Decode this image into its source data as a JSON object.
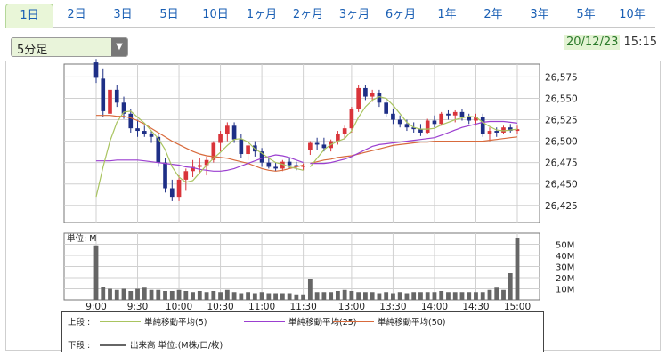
{
  "tabs": [
    {
      "label": "1日",
      "active": true
    },
    {
      "label": "2日",
      "active": false
    },
    {
      "label": "3日",
      "active": false
    },
    {
      "label": "5日",
      "active": false
    },
    {
      "label": "10日",
      "active": false
    },
    {
      "label": "1ヶ月",
      "active": false
    },
    {
      "label": "2ヶ月",
      "active": false
    },
    {
      "label": "3ヶ月",
      "active": false
    },
    {
      "label": "6ヶ月",
      "active": false
    },
    {
      "label": "1年",
      "active": false
    },
    {
      "label": "2年",
      "active": false
    },
    {
      "label": "3年",
      "active": false
    },
    {
      "label": "5年",
      "active": false
    },
    {
      "label": "10年",
      "active": false
    }
  ],
  "interval_select": {
    "value": "5分足"
  },
  "datetime": {
    "date": "20/12/23",
    "time": "15:15"
  },
  "colors": {
    "up": "#d9343a",
    "down": "#1e2f86",
    "ma5": "#a9c460",
    "ma25": "#9b3fd0",
    "ma50": "#d86a3c",
    "volume": "#666666",
    "grid": "#d0d0d0"
  },
  "legend": {
    "upper_label": "上段 :",
    "lower_label": "下段 :",
    "ma5_label": "単純移動平均(5)",
    "ma25_label": "単純移動平均(25)",
    "ma50_label": "単純移動平均(50)",
    "volume_label": "出来高 単位:(M株/口/枚)"
  },
  "chart_data": [
    {
      "type": "candlestick",
      "x_ticks": [
        "9:00",
        "9:30",
        "10:00",
        "10:30",
        "11:00",
        "11:30",
        "13:00",
        "13:30",
        "14:00",
        "14:30",
        "15:00"
      ],
      "y_ticks": [
        26425,
        26450,
        26475,
        26500,
        26525,
        26550,
        26575
      ],
      "ylim": [
        26405,
        26590
      ],
      "session1_times": [
        "9:00",
        "9:05",
        "9:10",
        "9:15",
        "9:20",
        "9:25",
        "9:30",
        "9:35",
        "9:40",
        "9:45",
        "9:50",
        "9:55",
        "10:00",
        "10:05",
        "10:10",
        "10:15",
        "10:20",
        "10:25",
        "10:30",
        "10:35",
        "10:40",
        "10:45",
        "10:50",
        "10:55",
        "11:00",
        "11:05",
        "11:10",
        "11:15",
        "11:20",
        "11:25",
        "11:30"
      ],
      "session1_candles": [
        [
          26592,
          26596,
          26568,
          26574
        ],
        [
          26573,
          26585,
          26528,
          26535
        ],
        [
          26532,
          26566,
          26528,
          26560
        ],
        [
          26560,
          26566,
          26540,
          26545
        ],
        [
          26545,
          26552,
          26526,
          26532
        ],
        [
          26532,
          26538,
          26510,
          26515
        ],
        [
          26515,
          26525,
          26505,
          26512
        ],
        [
          26512,
          26518,
          26505,
          26508
        ],
        [
          26508,
          26512,
          26498,
          26505
        ],
        [
          26505,
          26510,
          26470,
          26475
        ],
        [
          26475,
          26480,
          26440,
          26445
        ],
        [
          26445,
          26455,
          26430,
          26435
        ],
        [
          26435,
          26460,
          26430,
          26455
        ],
        [
          26455,
          26468,
          26442,
          26465
        ],
        [
          26465,
          26478,
          26458,
          26470
        ],
        [
          26470,
          26480,
          26462,
          26472
        ],
        [
          26472,
          26482,
          26460,
          26478
        ],
        [
          26478,
          26500,
          26475,
          26498
        ],
        [
          26498,
          26512,
          26488,
          26508
        ],
        [
          26508,
          26522,
          26500,
          26518
        ],
        [
          26518,
          26522,
          26498,
          26502
        ],
        [
          26502,
          26508,
          26480,
          26485
        ],
        [
          26485,
          26500,
          26478,
          26495
        ],
        [
          26495,
          26500,
          26482,
          26488
        ],
        [
          26488,
          26492,
          26470,
          26475
        ],
        [
          26475,
          26480,
          26468,
          26470
        ],
        [
          26470,
          26475,
          26465,
          26468
        ],
        [
          26468,
          26478,
          26465,
          26476
        ],
        [
          26476,
          26480,
          26468,
          26472
        ],
        [
          26472,
          26476,
          26466,
          26470
        ],
        [
          26470,
          26474,
          26466,
          26471
        ]
      ],
      "session2_times": [
        "12:30",
        "12:35",
        "12:40",
        "12:45",
        "12:50",
        "12:55",
        "13:00",
        "13:05",
        "13:10",
        "13:15",
        "13:20",
        "13:25",
        "13:30",
        "13:35",
        "13:40",
        "13:45",
        "13:50",
        "13:55",
        "14:00",
        "14:05",
        "14:10",
        "14:15",
        "14:20",
        "14:25",
        "14:30",
        "14:35",
        "14:40",
        "14:45",
        "14:50",
        "14:55",
        "15:00"
      ],
      "session2_candles": [
        [
          26490,
          26500,
          26484,
          26498
        ],
        [
          26498,
          26504,
          26490,
          26496
        ],
        [
          26496,
          26504,
          26488,
          26492
        ],
        [
          26492,
          26502,
          26488,
          26500
        ],
        [
          26500,
          26512,
          26496,
          26508
        ],
        [
          26508,
          26518,
          26502,
          26515
        ],
        [
          26515,
          26540,
          26510,
          26538
        ],
        [
          26538,
          26566,
          26534,
          26562
        ],
        [
          26562,
          26566,
          26548,
          26552
        ],
        [
          26552,
          26560,
          26546,
          26556
        ],
        [
          26556,
          26560,
          26540,
          26545
        ],
        [
          26545,
          26550,
          26528,
          26532
        ],
        [
          26532,
          26538,
          26520,
          26525
        ],
        [
          26525,
          26530,
          26516,
          26520
        ],
        [
          26520,
          26525,
          26512,
          26516
        ],
        [
          26516,
          26522,
          26510,
          26514
        ],
        [
          26514,
          26520,
          26506,
          26510
        ],
        [
          26510,
          26526,
          26508,
          26524
        ],
        [
          26524,
          26530,
          26516,
          26520
        ],
        [
          26520,
          26534,
          26518,
          26532
        ],
        [
          26532,
          26536,
          26525,
          26530
        ],
        [
          26530,
          26536,
          26522,
          26534
        ],
        [
          26534,
          26538,
          26524,
          26528
        ],
        [
          26528,
          26532,
          26520,
          26524
        ],
        [
          26524,
          26532,
          26518,
          26528
        ],
        [
          26528,
          26532,
          26505,
          26508
        ],
        [
          26508,
          26516,
          26500,
          26512
        ],
        [
          26512,
          26516,
          26505,
          26510
        ],
        [
          26510,
          26518,
          26508,
          26516
        ],
        [
          26516,
          26520,
          26510,
          26512
        ],
        [
          26512,
          26518,
          26508,
          26514
        ]
      ],
      "ma5_session1": [
        26435,
        26470,
        26500,
        26522,
        26534,
        26535,
        26528,
        26521,
        26512,
        26503,
        26490,
        26470,
        26458,
        26452,
        26454,
        26463,
        26472,
        26480,
        26487,
        26495,
        26502,
        26503,
        26499,
        26491,
        26486,
        26480,
        26475,
        26473,
        26470,
        26468,
        26466
      ],
      "ma5_session2": [
        26470,
        26480,
        26490,
        26496,
        26500,
        26503,
        26512,
        26528,
        26540,
        26548,
        26552,
        26550,
        26542,
        26532,
        26522,
        26516,
        26514,
        26514,
        26515,
        26519,
        26522,
        26525,
        26527,
        26529,
        26528,
        26522,
        26517,
        26513,
        26512,
        26513,
        26514
      ],
      "ma25_session1": [
        26477,
        26477,
        26477,
        26478,
        26478,
        26478,
        26478,
        26477,
        26476,
        26475,
        26474,
        26473,
        26472,
        26470,
        26469,
        26467,
        26466,
        26465,
        26465,
        26466,
        26468,
        26471,
        26474,
        26477,
        26480,
        26482,
        26484,
        26483,
        26481,
        26478,
        26475
      ],
      "ma25_session2": [
        26474,
        26474,
        26474,
        26475,
        26477,
        26479,
        26482,
        26486,
        26490,
        26494,
        26496,
        26497,
        26498,
        26499,
        26500,
        26501,
        26502,
        26503,
        26504,
        26507,
        26510,
        26513,
        26516,
        26518,
        26520,
        26522,
        26523,
        26523,
        26523,
        26522,
        26521
      ],
      "ma50_session1": [
        26530,
        26530,
        26530,
        26529,
        26529,
        26527,
        26524,
        26520,
        26515,
        26510,
        26505,
        26500,
        26496,
        26492,
        26488,
        26485,
        26483,
        26482,
        26481,
        26480,
        26478,
        26476,
        26474,
        26471,
        26468,
        26466,
        26465,
        26466,
        26468,
        26470,
        26472
      ],
      "ma50_session2": [
        26474,
        26476,
        26478,
        26479,
        26481,
        26482,
        26483,
        26485,
        26487,
        26489,
        26491,
        26493,
        26495,
        26496,
        26497,
        26498,
        26499,
        26499,
        26500,
        26500,
        26500,
        26500,
        26500,
        26500,
        26500,
        26500,
        26501,
        26502,
        26503,
        26504,
        26505
      ]
    },
    {
      "type": "bar",
      "name": "出来高",
      "ylabel": "単位: M",
      "y_ticks": [
        "10M",
        "20M",
        "30M",
        "40M",
        "50M"
      ],
      "ylim": [
        0,
        60
      ],
      "session1_values": [
        49,
        12,
        10,
        9,
        10,
        8,
        10,
        11,
        9,
        9,
        8,
        8,
        9,
        8,
        7,
        8,
        7,
        8,
        7,
        9,
        7,
        6,
        7,
        6,
        7,
        6,
        6,
        6,
        6,
        5,
        5
      ],
      "session2_values": [
        19,
        7,
        7,
        7,
        8,
        9,
        8,
        7,
        7,
        7,
        6,
        7,
        6,
        7,
        6,
        7,
        7,
        7,
        7,
        8,
        7,
        7,
        7,
        7,
        7,
        7,
        9,
        11,
        9,
        24,
        56
      ]
    }
  ]
}
